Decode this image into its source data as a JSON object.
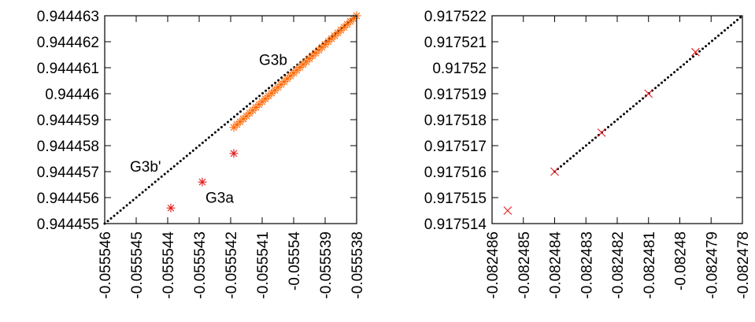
{
  "colors": {
    "dotted_line": "#000000",
    "red_marker": "#e41a1c",
    "orange_marker": "#ff6600"
  },
  "chart_data": [
    {
      "type": "scatter",
      "title": "",
      "xlabel": "",
      "ylabel": "",
      "grid": false,
      "xlim": [
        -0.055546,
        -0.055538
      ],
      "ylim": [
        0.944455,
        0.944463
      ],
      "x_tick_values": [
        -0.055546,
        -0.055545,
        -0.055544,
        -0.055543,
        -0.055542,
        -0.055541,
        -0.05554,
        -0.055539,
        -0.055538
      ],
      "x_tick_labels": [
        "-0.055546",
        "-0.055545",
        "-0.055544",
        "-0.055543",
        "-0.055542",
        "-0.055541",
        "-0.05554",
        "-0.055539",
        "-0.055538"
      ],
      "y_tick_values": [
        0.944455,
        0.944456,
        0.944457,
        0.944458,
        0.944459,
        0.94446,
        0.944461,
        0.944462,
        0.944463
      ],
      "y_tick_labels": [
        "0.944455",
        "0.944456",
        "0.944457",
        "0.944458",
        "0.944459",
        "0.94446",
        "0.944461",
        "0.944462",
        "0.944463"
      ],
      "series": [
        {
          "line_style": "dotted",
          "color": "#000000",
          "x": [
            -0.055546,
            -0.055538
          ],
          "y": [
            0.944455,
            0.944463
          ]
        },
        {
          "marker": "star",
          "color": "#e41a1c",
          "x": [
            -0.0555439,
            -0.0555429,
            -0.0555419
          ],
          "y": [
            0.9444556,
            0.9444566,
            0.9444577
          ]
        },
        {
          "marker": "star",
          "color": "#ff6600",
          "x_start": -0.0555419,
          "x_end": -0.055538,
          "y_start": 0.9444587,
          "y_end": 0.944463,
          "count": 40
        }
      ],
      "annotations": [
        {
          "text": "G3b",
          "x": -0.0555411,
          "y": 0.9444611
        },
        {
          "text": "G3b'",
          "x": -0.0555452,
          "y": 0.944457
        },
        {
          "text": "G3a",
          "x": -0.0555428,
          "y": 0.9444558
        }
      ]
    },
    {
      "type": "scatter",
      "title": "",
      "xlabel": "",
      "ylabel": "",
      "grid": false,
      "xlim": [
        -0.082486,
        -0.082478
      ],
      "ylim": [
        0.917514,
        0.917522
      ],
      "x_tick_values": [
        -0.082486,
        -0.082485,
        -0.082484,
        -0.082483,
        -0.082482,
        -0.082481,
        -0.08248,
        -0.082479,
        -0.082478
      ],
      "x_tick_labels": [
        "-0.082486",
        "-0.082485",
        "-0.082484",
        "-0.082483",
        "-0.082482",
        "-0.082481",
        "-0.08248",
        "-0.082479",
        "-0.082478"
      ],
      "y_tick_values": [
        0.917514,
        0.917515,
        0.917516,
        0.917517,
        0.917518,
        0.917519,
        0.91752,
        0.917521,
        0.917522
      ],
      "y_tick_labels": [
        "0.917514",
        "0.917515",
        "0.917516",
        "0.917517",
        "0.917518",
        "0.917519",
        "0.91752",
        "0.917521",
        "0.917522"
      ],
      "series": [
        {
          "line_style": "dotted",
          "color": "#000000",
          "x": [
            -0.082484,
            -0.082478
          ],
          "y": [
            0.917516,
            0.917522
          ]
        },
        {
          "marker": "cross",
          "color": "#e41a1c",
          "x": [
            -0.0824855,
            -0.082484,
            -0.0824825,
            -0.082481,
            -0.0824795
          ],
          "y": [
            0.9175145,
            0.917516,
            0.9175175,
            0.917519,
            0.9175206
          ]
        }
      ],
      "annotations": []
    }
  ]
}
